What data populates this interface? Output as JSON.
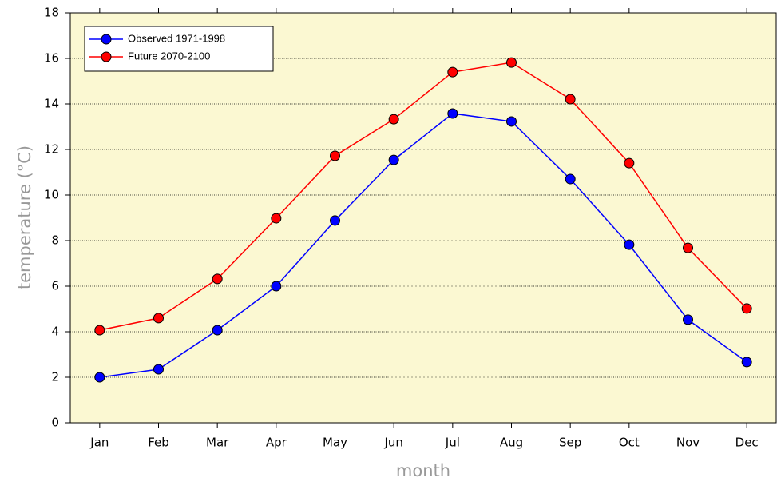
{
  "chart_data": {
    "type": "line",
    "x_label": "month",
    "y_label": "temperature (°C)",
    "categories": [
      "Jan",
      "Feb",
      "Mar",
      "Apr",
      "May",
      "Jun",
      "Jul",
      "Aug",
      "Sep",
      "Oct",
      "Nov",
      "Dec"
    ],
    "series": [
      {
        "name": "Observed 1971-1998",
        "color": "#0000ff",
        "values": [
          2.0,
          2.35,
          4.07,
          6.0,
          8.88,
          11.54,
          13.58,
          13.23,
          10.7,
          7.82,
          4.53,
          2.67
        ]
      },
      {
        "name": "Future 2070-2100",
        "color": "#ff0000",
        "values": [
          4.07,
          4.6,
          6.32,
          8.98,
          11.72,
          13.33,
          15.4,
          15.82,
          14.21,
          11.4,
          7.68,
          5.02
        ]
      }
    ],
    "ylim": [
      0,
      18
    ],
    "yticks": [
      0,
      2,
      4,
      6,
      8,
      10,
      12,
      14,
      16,
      18
    ],
    "grid": true,
    "legend": "top-left"
  }
}
